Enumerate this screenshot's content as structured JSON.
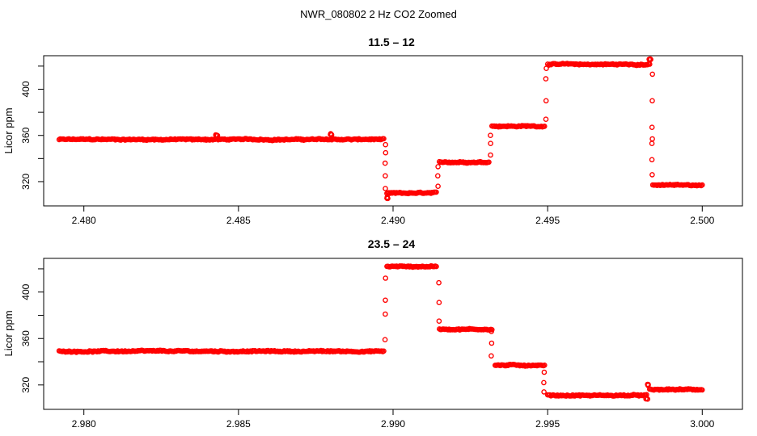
{
  "figure": {
    "title": "NWR_080802  2 Hz CO2 Zoomed",
    "point_color": "#ff0000"
  },
  "chart_data": [
    {
      "type": "scatter",
      "title": "11.5 – 12",
      "xlabel": "",
      "ylabel": "Licor ppm",
      "xlim": [
        2.4787,
        2.5013
      ],
      "ylim": [
        299,
        429
      ],
      "xticks": [
        2.48,
        2.485,
        2.49,
        2.495,
        2.5
      ],
      "xtick_labels": [
        "2.480",
        "2.485",
        "2.490",
        "2.495",
        "2.500"
      ],
      "yticks": [
        320,
        340,
        360,
        380,
        400,
        420
      ],
      "ytick_labels": [
        "320",
        "",
        "360",
        "",
        "400",
        ""
      ],
      "grid": false,
      "legend": "none",
      "segments": [
        {
          "x_start": 2.4792,
          "x_end": 2.4897,
          "y": 356.5
        },
        {
          "x_start": 2.4898,
          "x_end": 2.4914,
          "y": 310.0
        },
        {
          "x_start": 2.4915,
          "x_end": 2.4931,
          "y": 337.0
        },
        {
          "x_start": 2.4932,
          "x_end": 2.4949,
          "y": 368.0
        },
        {
          "x_start": 2.495,
          "x_end": 2.4983,
          "y": 421.5
        },
        {
          "x_start": 2.4984,
          "x_end": 2.5,
          "y": 317.0
        }
      ],
      "features": [
        {
          "x": 2.488,
          "y": 361
        },
        {
          "x": 2.4843,
          "y": 360
        },
        {
          "x": 2.4898,
          "y": 306
        },
        {
          "x": 2.4983,
          "y": 426
        }
      ],
      "transitions": [
        {
          "x": 2.48975,
          "y": [
            352,
            345,
            336,
            325,
            314
          ]
        },
        {
          "x": 2.49145,
          "y": [
            316,
            325,
            333
          ]
        },
        {
          "x": 2.49315,
          "y": [
            343,
            353,
            360
          ]
        },
        {
          "x": 2.49495,
          "y": [
            374,
            390,
            409,
            418
          ]
        },
        {
          "x": 2.49838,
          "y": [
            413,
            390,
            367,
            357,
            353,
            339,
            326
          ]
        }
      ]
    },
    {
      "type": "scatter",
      "title": "23.5 – 24",
      "xlabel": "",
      "ylabel": "Licor ppm",
      "xlim": [
        2.9787,
        3.0013
      ],
      "ylim": [
        299,
        429
      ],
      "xticks": [
        2.98,
        2.985,
        2.99,
        2.995,
        3.0
      ],
      "xtick_labels": [
        "2.980",
        "2.985",
        "2.990",
        "2.995",
        "3.000"
      ],
      "yticks": [
        320,
        340,
        360,
        380,
        400,
        420
      ],
      "ytick_labels": [
        "320",
        "",
        "360",
        "",
        "400",
        ""
      ],
      "grid": false,
      "legend": "none",
      "segments": [
        {
          "x_start": 2.9792,
          "x_end": 2.9897,
          "y": 349.0
        },
        {
          "x_start": 2.9898,
          "x_end": 2.9914,
          "y": 422.0
        },
        {
          "x_start": 2.9915,
          "x_end": 2.9932,
          "y": 368.0
        },
        {
          "x_start": 2.9933,
          "x_end": 2.9949,
          "y": 337.0
        },
        {
          "x_start": 2.995,
          "x_end": 2.9982,
          "y": 311.0
        },
        {
          "x_start": 2.9983,
          "x_end": 3.0,
          "y": 316.0
        }
      ],
      "features": [
        {
          "x": 2.99825,
          "y": 320
        },
        {
          "x": 2.9982,
          "y": 308
        }
      ],
      "transitions": [
        {
          "x": 2.98975,
          "y": [
            359,
            381,
            393,
            412
          ]
        },
        {
          "x": 2.99148,
          "y": [
            408,
            391,
            375
          ]
        },
        {
          "x": 2.99318,
          "y": [
            366,
            356,
            345
          ]
        },
        {
          "x": 2.99488,
          "y": [
            331,
            322,
            314
          ]
        }
      ]
    }
  ]
}
